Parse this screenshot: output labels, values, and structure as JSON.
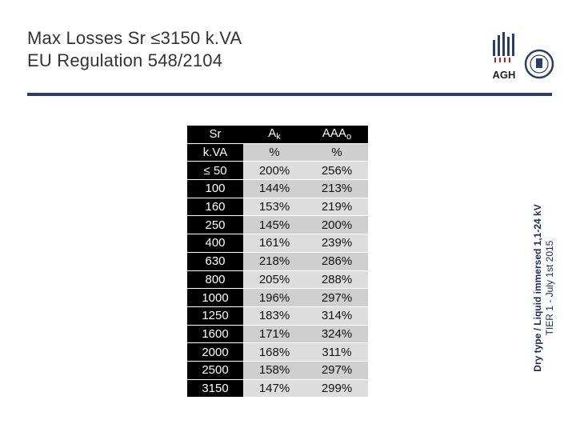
{
  "title": {
    "line1": "Max Losses Sr ≤3150 k.VA",
    "line2": "EU Regulation 548/2104"
  },
  "logo": {
    "text": "AGH"
  },
  "side_note": {
    "line1": "Dry type / Liquid immersed 1,1-24 kV",
    "line2": "TIER 1 - July 1st 2015"
  },
  "table": {
    "header": {
      "col1": "Sr",
      "col2_main": "A",
      "col2_sub": "k",
      "col3_main": "AAA",
      "col3_sub": "o"
    },
    "units": [
      "k.VA",
      "%",
      "%"
    ],
    "rows": [
      [
        "≤ 50",
        "200%",
        "256%"
      ],
      [
        "100",
        "144%",
        "213%"
      ],
      [
        "160",
        "153%",
        "219%"
      ],
      [
        "250",
        "145%",
        "200%"
      ],
      [
        "400",
        "161%",
        "239%"
      ],
      [
        "630",
        "218%",
        "286%"
      ],
      [
        "800",
        "205%",
        "288%"
      ],
      [
        "1000",
        "196%",
        "297%"
      ],
      [
        "1250",
        "183%",
        "314%"
      ],
      [
        "1600",
        "171%",
        "324%"
      ],
      [
        "2000",
        "168%",
        "311%"
      ],
      [
        "2500",
        "158%",
        "297%"
      ],
      [
        "3150",
        "147%",
        "299%"
      ]
    ]
  }
}
